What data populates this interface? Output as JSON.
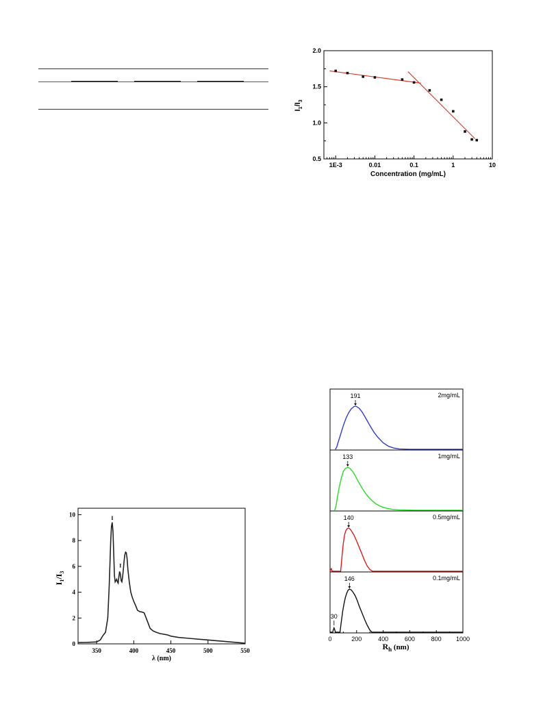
{
  "colors": {
    "fit_line": "#e23a2a",
    "blue": "#2d3bd9",
    "green": "#25dd25",
    "red": "#e21a1a",
    "black": "#111111"
  },
  "chart_data": [
    {
      "type": "scatter",
      "xscale": "log",
      "xlim": [
        0.0005,
        10
      ],
      "ylim": [
        0.5,
        2.0
      ],
      "xlabel": "Concentration (mg/mL)",
      "ylabel": "I1/I3",
      "ylabel_main": "I",
      "ylabel_sub1": "1",
      "ylabel_sep": "/I",
      "ylabel_sub2": "3",
      "xticks": [
        0.001,
        0.01,
        0.1,
        1,
        10
      ],
      "xtick_labels": [
        "1E-3",
        "0.01",
        "0.1",
        "1",
        "10"
      ],
      "yticks": [
        0.5,
        1.0,
        1.5,
        2.0
      ],
      "ytick_labels": [
        "0.5",
        "1.0",
        "1.5",
        "2.0"
      ],
      "x": [
        0.001,
        0.002,
        0.005,
        0.01,
        0.05,
        0.1,
        0.25,
        0.5,
        1,
        2,
        3,
        4
      ],
      "y": [
        1.72,
        1.69,
        1.64,
        1.63,
        1.6,
        1.56,
        1.45,
        1.32,
        1.16,
        0.88,
        0.77,
        0.76
      ],
      "fit_lines": [
        {
          "x": [
            0.0007,
            0.15
          ],
          "y": [
            1.72,
            1.55
          ]
        },
        {
          "x": [
            0.07,
            3.6
          ],
          "y": [
            1.71,
            0.78
          ]
        }
      ]
    },
    {
      "type": "line",
      "xlim": [
        325,
        550
      ],
      "ylim": [
        0,
        10.5
      ],
      "xlabel": "λ (nm)",
      "ylabel": "I1/I3",
      "ylabel_main": "I",
      "ylabel_sub1": "1",
      "ylabel_sep": "/I",
      "ylabel_sub2": "3",
      "xticks": [
        350,
        400,
        450,
        500,
        550
      ],
      "xtick_labels": [
        "350",
        "400",
        "450",
        "500",
        "550"
      ],
      "yticks": [
        0,
        2,
        4,
        6,
        8,
        10
      ],
      "ytick_labels": [
        "0",
        "2",
        "4",
        "6",
        "8",
        "10"
      ],
      "annotations": [
        {
          "text": "I",
          "x": 371,
          "y": 9.6
        },
        {
          "text": "I",
          "x": 382,
          "y": 5.9
        }
      ],
      "x": [
        325,
        340,
        350,
        355,
        358,
        362,
        365,
        367,
        369,
        370,
        371,
        372,
        373,
        374,
        375,
        376,
        377,
        378,
        379,
        380,
        381,
        382,
        383,
        384,
        385,
        386,
        387,
        388,
        389,
        390,
        391,
        392,
        394,
        396,
        398,
        400,
        403,
        405,
        408,
        412,
        414,
        418,
        422,
        426,
        430,
        435,
        440,
        445,
        450,
        460,
        470,
        480,
        490,
        500,
        510,
        520,
        530,
        540,
        550
      ],
      "y": [
        0.1,
        0.12,
        0.15,
        0.3,
        0.6,
        0.9,
        2.0,
        4.5,
        8.0,
        9.1,
        9.4,
        8.7,
        7.0,
        5.3,
        4.8,
        4.9,
        5.0,
        4.8,
        4.7,
        5.2,
        5.6,
        5.4,
        4.9,
        4.8,
        5.2,
        5.8,
        6.4,
        6.9,
        7.1,
        7.05,
        6.6,
        5.8,
        4.8,
        4.0,
        3.6,
        3.3,
        2.9,
        2.6,
        2.5,
        2.45,
        2.4,
        1.8,
        1.2,
        1.0,
        0.9,
        0.8,
        0.75,
        0.7,
        0.6,
        0.5,
        0.45,
        0.4,
        0.35,
        0.3,
        0.25,
        0.2,
        0.15,
        0.1,
        0.05
      ]
    },
    {
      "type": "line",
      "xlim": [
        0,
        1000
      ],
      "xlabel": "R",
      "xlabel_sub": "h",
      "xlabel_unit": " (nm)",
      "xticks": [
        0,
        200,
        400,
        600,
        800,
        1000
      ],
      "xtick_labels": [
        "0",
        "200",
        "400",
        "600",
        "800",
        "1000"
      ],
      "series": [
        {
          "name": "2mg/mL",
          "peak": 191,
          "peak_label": "191",
          "color": "#2d3bd9",
          "x": [
            40,
            50,
            60,
            80,
            100,
            120,
            140,
            160,
            180,
            191,
            200,
            220,
            240,
            260,
            280,
            300,
            330,
            360,
            400,
            440,
            480,
            520,
            560,
            600,
            1000
          ],
          "y": [
            0,
            0.05,
            0.15,
            0.35,
            0.55,
            0.72,
            0.85,
            0.94,
            0.99,
            1.0,
            0.99,
            0.95,
            0.87,
            0.77,
            0.66,
            0.55,
            0.4,
            0.28,
            0.15,
            0.07,
            0.03,
            0.01,
            0.005,
            0,
            0
          ]
        },
        {
          "name": "1mg/mL",
          "peak": 133,
          "peak_label": "133",
          "color": "#25dd25",
          "x": [
            35,
            45,
            55,
            70,
            85,
            100,
            115,
            133,
            150,
            170,
            190,
            210,
            240,
            270,
            300,
            340,
            380,
            420,
            470,
            520,
            580,
            640,
            1000
          ],
          "y": [
            0,
            0.1,
            0.3,
            0.55,
            0.75,
            0.9,
            0.97,
            1.0,
            0.97,
            0.9,
            0.8,
            0.68,
            0.52,
            0.38,
            0.27,
            0.16,
            0.09,
            0.05,
            0.02,
            0.01,
            0.005,
            0,
            0
          ]
        },
        {
          "name": "0.5mg/mL",
          "peak": 140,
          "peak_label": "140",
          "color": "#e21a1a",
          "x": [
            0,
            5,
            10,
            15,
            80,
            90,
            100,
            110,
            120,
            130,
            140,
            150,
            160,
            180,
            200,
            220,
            240,
            260,
            280,
            300,
            320,
            1000
          ],
          "y": [
            0,
            0.04,
            0.06,
            0,
            0,
            0.35,
            0.65,
            0.85,
            0.95,
            0.99,
            1.0,
            0.98,
            0.94,
            0.84,
            0.7,
            0.55,
            0.4,
            0.25,
            0.12,
            0.04,
            0,
            0
          ]
        },
        {
          "name": "0.1mg/mL",
          "peak": 146,
          "peak_label": "146",
          "peak2": 30,
          "peak2_label": "30",
          "color": "#111111",
          "x": [
            0,
            20,
            25,
            30,
            35,
            40,
            75,
            85,
            95,
            105,
            115,
            125,
            135,
            146,
            160,
            175,
            190,
            205,
            220,
            240,
            260,
            280,
            300,
            315,
            1000
          ],
          "y": [
            0,
            0,
            0.06,
            0.1,
            0.06,
            0,
            0,
            0.25,
            0.48,
            0.66,
            0.8,
            0.9,
            0.97,
            1.0,
            0.98,
            0.92,
            0.84,
            0.73,
            0.6,
            0.45,
            0.3,
            0.16,
            0.05,
            0,
            0
          ]
        }
      ]
    }
  ]
}
